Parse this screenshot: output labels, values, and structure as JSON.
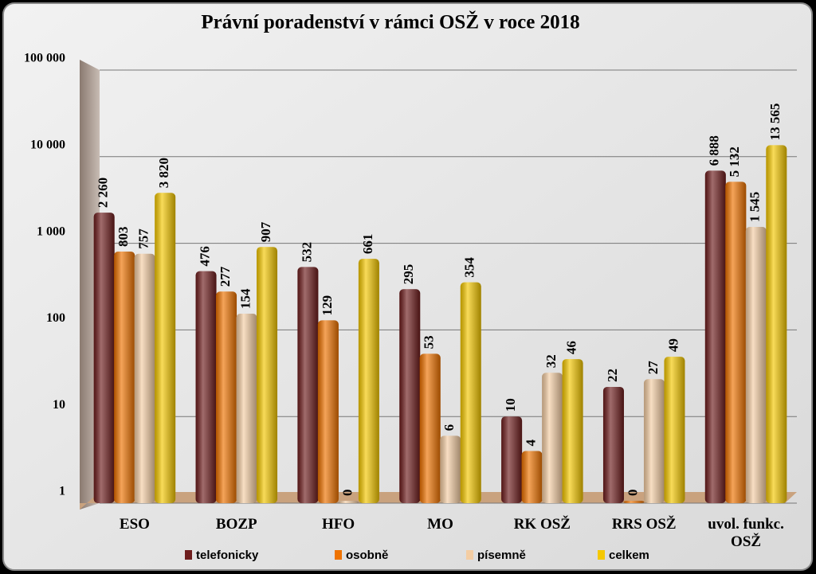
{
  "chart_data": {
    "type": "bar",
    "title": "Právní poradenství v rámci OSŽ v roce 2018",
    "categories": [
      "ESO",
      "BOZP",
      "HFO",
      "MO",
      "RK OSŽ",
      "RRS OSŽ",
      "uvol. funkc. OSŽ"
    ],
    "series": [
      {
        "name": "telefonicky",
        "color": "#6e1d1d",
        "values": [
          2260,
          476,
          532,
          295,
          10,
          22,
          6888
        ],
        "value_labels": [
          "2 260",
          "476",
          "532",
          "295",
          "10",
          "22",
          "6 888"
        ]
      },
      {
        "name": "osobně",
        "color": "#ef7300",
        "values": [
          803,
          277,
          129,
          53,
          4,
          0,
          5132
        ],
        "value_labels": [
          "803",
          "277",
          "129",
          "53",
          "4",
          "0",
          "5 132"
        ]
      },
      {
        "name": "písemně",
        "color": "#f4cda3",
        "values": [
          757,
          154,
          0,
          6,
          32,
          27,
          1545
        ],
        "value_labels": [
          "757",
          "154",
          "0",
          "6",
          "32",
          "27",
          "1 545"
        ]
      },
      {
        "name": "celkem",
        "color": "#f5c800",
        "values": [
          3820,
          907,
          661,
          354,
          46,
          49,
          13565
        ],
        "value_labels": [
          "3 820",
          "907",
          "661",
          "354",
          "46",
          "49",
          "13 565"
        ]
      }
    ],
    "log": true,
    "ylim": [
      1,
      100000
    ],
    "yticks": [
      1,
      10,
      100,
      {
        "value": 1000,
        "label": "1 000"
      },
      {
        "value": 10000,
        "label": "10 000"
      },
      {
        "value": 100000,
        "label": "100 000"
      }
    ],
    "grid": true,
    "legend": "bottom"
  }
}
